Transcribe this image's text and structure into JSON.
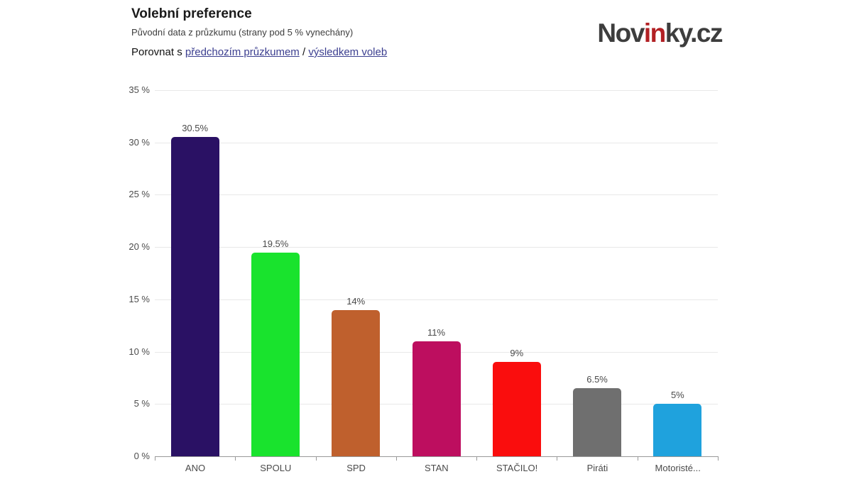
{
  "header": {
    "title": "Volební preference",
    "subtitle": "Původní data z průzkumu (strany pod 5 % vynechány)",
    "compare": {
      "prefix": "Porovnat s",
      "link_previous": "předchozím průzkumem",
      "separator": "/",
      "link_results": "výsledkem voleb"
    }
  },
  "logo": {
    "part1": "Nov",
    "part2": "in",
    "part3": "ky.cz",
    "base_color": "#3d3d3d",
    "accent_color": "#b22024"
  },
  "chart_data": {
    "type": "bar",
    "title": "Volební preference",
    "xlabel": "",
    "ylabel": "",
    "categories": [
      "ANO",
      "SPOLU",
      "SPD",
      "STAN",
      "STAČILO!",
      "Piráti",
      "Motoristé..."
    ],
    "values": [
      30.5,
      19.5,
      14,
      11,
      9,
      6.5,
      5
    ],
    "value_labels": [
      "30.5%",
      "19.5%",
      "14%",
      "11%",
      "9%",
      "6.5%",
      "5%"
    ],
    "bar_colors": [
      "#2a1164",
      "#19e32d",
      "#bf602d",
      "#bd0e5f",
      "#fa0d0d",
      "#6f6f6f",
      "#1fa2dd"
    ],
    "ylim": [
      0,
      35
    ],
    "ytick_step": 5,
    "ytick_labels": [
      "0 %",
      "5 %",
      "10 %",
      "15 %",
      "20 %",
      "25 %",
      "30 %",
      "35 %"
    ],
    "grid": true,
    "legend": false,
    "gridline_color": "#e8e8e8",
    "axis_color": "#999999"
  }
}
